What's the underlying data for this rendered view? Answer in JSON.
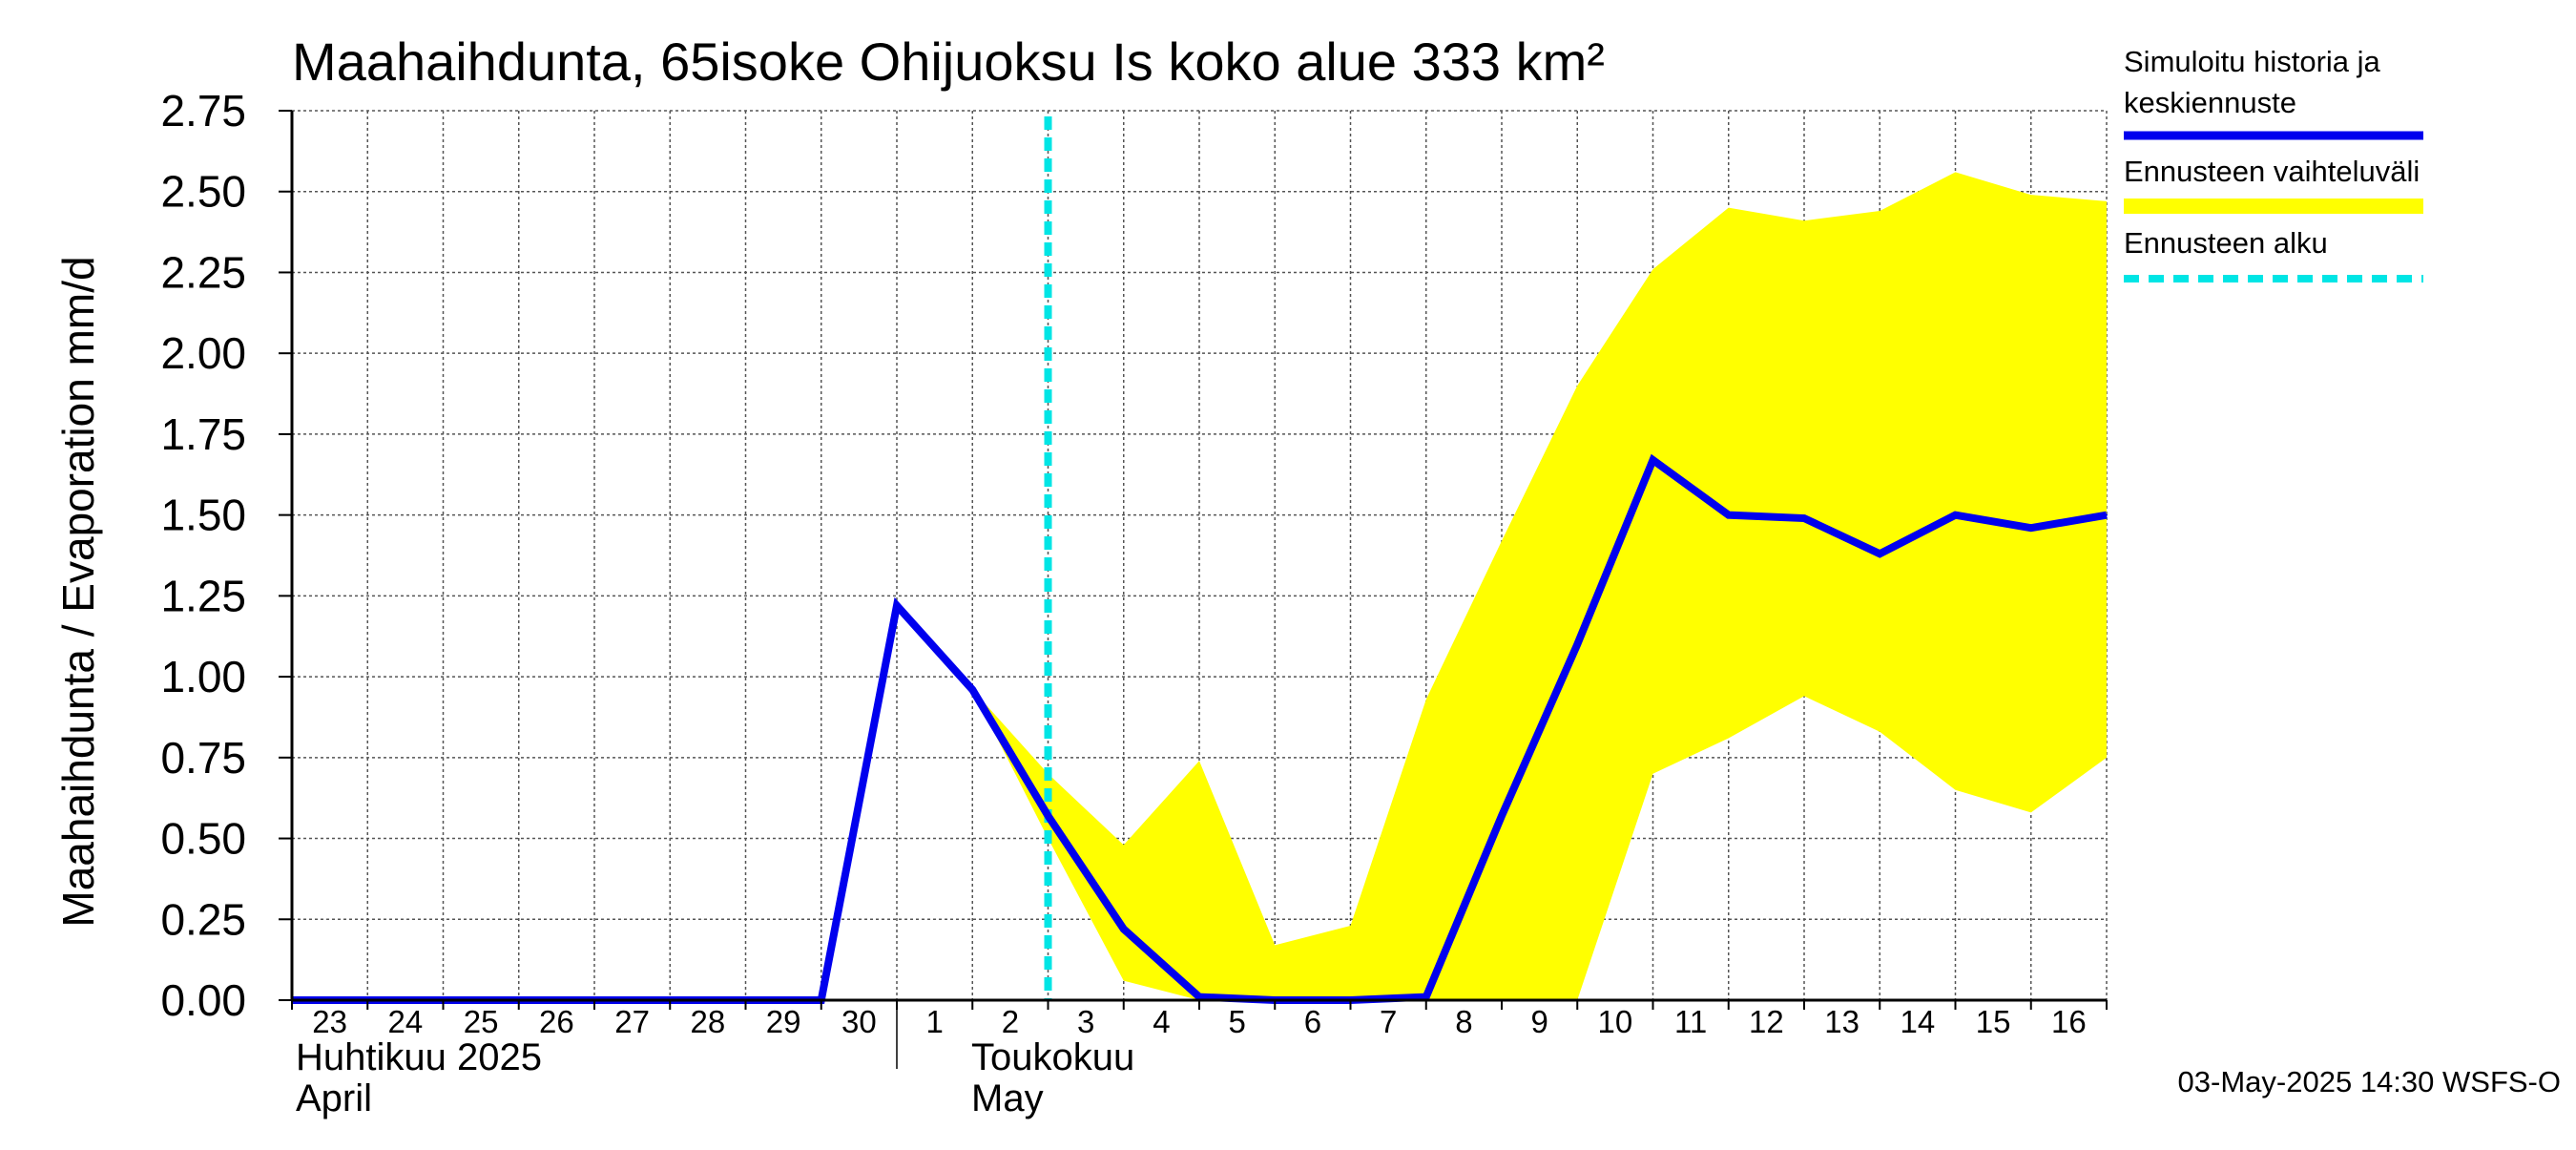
{
  "chart_data": {
    "type": "line",
    "title": "Maahaihdunta, 65isoke Ohijuoksu Is koko alue 333 km²",
    "ylabel": "Maahaihdunta / Evaporation   mm/d",
    "ylim": [
      0,
      2.75
    ],
    "yticks": [
      "0.00",
      "0.25",
      "0.50",
      "0.75",
      "1.00",
      "1.25",
      "1.50",
      "1.75",
      "2.00",
      "2.25",
      "2.50",
      "2.75"
    ],
    "x_start": "2025-04-23",
    "x_end": "2025-05-17",
    "xtick_labels": [
      "23",
      "24",
      "25",
      "26",
      "27",
      "28",
      "29",
      "30",
      "1",
      "2",
      "3",
      "4",
      "5",
      "6",
      "7",
      "8",
      "9",
      "10",
      "11",
      "12",
      "13",
      "14",
      "15",
      "16"
    ],
    "month_labels": [
      {
        "line1": "Huhtikuu  2025",
        "line2": "April"
      },
      {
        "line1": "Toukokuu",
        "line2": "May"
      }
    ],
    "forecast_start": "2025-05-03",
    "grid": true,
    "legend_placement": "right",
    "series": [
      {
        "name": "Simuloitu historia ja keskiennuste",
        "color": "#0000ee",
        "x": [
          "2025-04-23",
          "2025-04-24",
          "2025-04-25",
          "2025-04-26",
          "2025-04-27",
          "2025-04-28",
          "2025-04-29",
          "2025-04-30",
          "2025-05-01",
          "2025-05-02",
          "2025-05-03",
          "2025-05-04",
          "2025-05-05",
          "2025-05-06",
          "2025-05-07",
          "2025-05-08",
          "2025-05-09",
          "2025-05-10",
          "2025-05-11",
          "2025-05-12",
          "2025-05-13",
          "2025-05-14",
          "2025-05-15",
          "2025-05-16",
          "2025-05-17"
        ],
        "values": [
          0.0,
          0.0,
          0.0,
          0.0,
          0.0,
          0.0,
          0.0,
          0.0,
          1.22,
          0.96,
          0.57,
          0.22,
          0.01,
          0.0,
          0.0,
          0.01,
          0.57,
          1.1,
          1.67,
          1.5,
          1.49,
          1.38,
          1.5,
          1.46,
          1.5
        ]
      }
    ],
    "band": {
      "name": "Ennusteen vaihteluväli",
      "color": "#ffff00",
      "x": [
        "2025-05-02",
        "2025-05-03",
        "2025-05-04",
        "2025-05-05",
        "2025-05-06",
        "2025-05-07",
        "2025-05-08",
        "2025-05-09",
        "2025-05-10",
        "2025-05-11",
        "2025-05-12",
        "2025-05-13",
        "2025-05-14",
        "2025-05-15",
        "2025-05-16",
        "2025-05-17"
      ],
      "upper": [
        0.96,
        0.7,
        0.48,
        0.74,
        0.17,
        0.23,
        0.93,
        1.42,
        1.9,
        2.26,
        2.45,
        2.41,
        2.44,
        2.56,
        2.49,
        2.47
      ],
      "lower": [
        0.96,
        0.5,
        0.06,
        0.0,
        0.0,
        0.0,
        0.0,
        0.0,
        0.0,
        0.7,
        0.81,
        0.94,
        0.83,
        0.65,
        0.58,
        0.75
      ]
    },
    "legend": [
      {
        "label_line1": "Simuloitu historia ja",
        "label_line2": "keskiennuste",
        "color": "#0000ee",
        "style": "solid"
      },
      {
        "label_line1": "Ennusteen vaihteluväli",
        "label_line2": "",
        "color": "#ffff00",
        "style": "thick"
      },
      {
        "label_line1": "Ennusteen alku",
        "label_line2": "",
        "color": "#00e5e5",
        "style": "dashed"
      }
    ]
  },
  "footer": "03-May-2025 14:30 WSFS-O"
}
